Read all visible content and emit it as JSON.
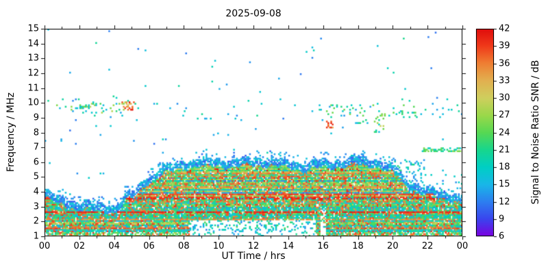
{
  "chart_data": {
    "type": "heatmap",
    "title": "2025-09-08",
    "xlabel": "UT Time / hrs",
    "ylabel": "Frequency / MHz",
    "colorbar_label": "Signal to Noise Ratio SNR / dB",
    "x_range": [
      0,
      24
    ],
    "y_range": [
      1,
      15
    ],
    "x_ticks": [
      0,
      2,
      4,
      6,
      8,
      10,
      12,
      14,
      16,
      18,
      20,
      22,
      24
    ],
    "x_tick_labels": [
      "00",
      "02",
      "04",
      "06",
      "08",
      "10",
      "12",
      "14",
      "16",
      "18",
      "20",
      "22",
      "00"
    ],
    "x_minor_tick_step": 1,
    "y_ticks": [
      1,
      2,
      3,
      4,
      5,
      6,
      7,
      8,
      9,
      10,
      11,
      12,
      13,
      14,
      15
    ],
    "colorbar_range": [
      6,
      42
    ],
    "colorbar_ticks": [
      6,
      9,
      12,
      15,
      18,
      21,
      24,
      27,
      30,
      33,
      36,
      39,
      42
    ],
    "grid": false,
    "legend": "colorbar-right",
    "colormap": [
      {
        "v": 6,
        "c": "#7b00e0"
      },
      {
        "v": 9,
        "c": "#3a45ee"
      },
      {
        "v": 12,
        "c": "#2d7ff0"
      },
      {
        "v": 15,
        "c": "#19b7e8"
      },
      {
        "v": 18,
        "c": "#00cfc4"
      },
      {
        "v": 21,
        "c": "#18d68d"
      },
      {
        "v": 24,
        "c": "#57d853"
      },
      {
        "v": 27,
        "c": "#9bd84a"
      },
      {
        "v": 30,
        "c": "#cfcf5e"
      },
      {
        "v": 33,
        "c": "#e2b050"
      },
      {
        "v": 36,
        "c": "#ef7f33"
      },
      {
        "v": 39,
        "c": "#f03a1a"
      },
      {
        "v": 42,
        "c": "#e00c0c"
      }
    ],
    "seed": 1337,
    "envelope": {
      "hours": [
        0,
        1,
        2,
        3,
        4,
        5,
        6,
        7,
        8,
        9,
        10,
        11,
        12,
        13,
        14,
        15,
        16,
        17,
        18,
        19,
        20,
        21,
        22,
        23,
        24
      ],
      "fmax": [
        3.9,
        3.5,
        3.2,
        3.05,
        3.0,
        3.9,
        5.0,
        5.6,
        6.0,
        6.05,
        6.15,
        6.0,
        6.2,
        6.1,
        6.0,
        5.8,
        6.0,
        6.05,
        6.2,
        6.1,
        5.6,
        4.6,
        4.1,
        3.9,
        3.7
      ]
    },
    "base": {
      "fill_density": 0.93,
      "rim_width": 0.35,
      "rim_density": 0.8,
      "halo_density": 0.1,
      "speckle_density": 0.004
    },
    "absorption": {
      "t_start": 8.3,
      "t_end": 15.6,
      "f_max": 2.1,
      "density": 0.2
    },
    "gap_columns": [
      {
        "t": [
          15.85,
          16.2
        ],
        "f": [
          1.0,
          2.8
        ],
        "density": 0.3
      }
    ],
    "clusters": [
      {
        "t": [
          4.4,
          5.15
        ],
        "f": [
          9.55,
          10.1
        ],
        "density": 0.5,
        "snr": [
          26,
          42
        ]
      },
      {
        "t": [
          2.0,
          2.7
        ],
        "f": [
          9.6,
          9.9
        ],
        "density": 0.45,
        "snr": [
          15,
          30
        ]
      },
      {
        "t": [
          16.15,
          16.6
        ],
        "f": [
          8.35,
          8.8
        ],
        "density": 0.5,
        "snr": [
          32,
          42
        ]
      },
      {
        "t": [
          21.7,
          23.95
        ],
        "f": [
          6.75,
          7.05
        ],
        "density": 0.55,
        "snr": [
          17,
          27
        ]
      },
      {
        "t": [
          18.95,
          19.55
        ],
        "f": [
          8.0,
          9.6
        ],
        "density": 0.22,
        "snr": [
          15,
          30
        ]
      },
      {
        "t": [
          17.8,
          18.6
        ],
        "f": [
          8.6,
          9.0
        ],
        "density": 0.18,
        "snr": [
          14,
          24
        ]
      },
      {
        "t": [
          0.3,
          5.3
        ],
        "f": [
          9.3,
          10.0
        ],
        "density": 0.1,
        "snr": [
          14,
          30
        ]
      },
      {
        "t": [
          15.6,
          21.4
        ],
        "f": [
          9.15,
          9.9
        ],
        "density": 0.1,
        "snr": [
          13,
          26
        ]
      },
      {
        "t": [
          20.0,
          21.8
        ],
        "f": [
          4.3,
          6.2
        ],
        "density": 0.15,
        "snr": [
          12,
          22
        ]
      },
      {
        "t": [
          21.8,
          24.0
        ],
        "f": [
          3.9,
          5.2
        ],
        "density": 0.08,
        "snr": [
          12,
          20
        ]
      },
      {
        "t": [
          21.8,
          23.9
        ],
        "f": [
          9.4,
          10.0
        ],
        "density": 0.08,
        "snr": [
          13,
          22
        ]
      }
    ]
  }
}
